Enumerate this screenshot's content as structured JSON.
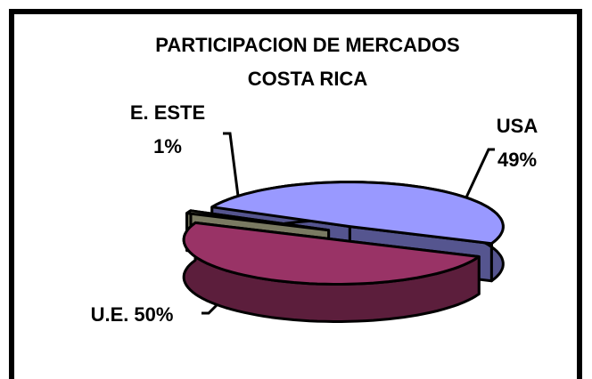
{
  "chart_data": {
    "type": "pie",
    "title": "PARTICIPACION DE MERCADOS",
    "subtitle": "COSTA RICA",
    "categories": [
      "USA",
      "U.E.",
      "E. ESTE"
    ],
    "values": [
      49,
      50,
      1
    ],
    "value_labels": [
      "49%",
      "50%",
      "1%"
    ],
    "colors": [
      "#9999ff",
      "#993366",
      "#b3b394"
    ],
    "side_colors": [
      "#55558f",
      "#5c1e3c",
      "#7a7a62"
    ]
  }
}
